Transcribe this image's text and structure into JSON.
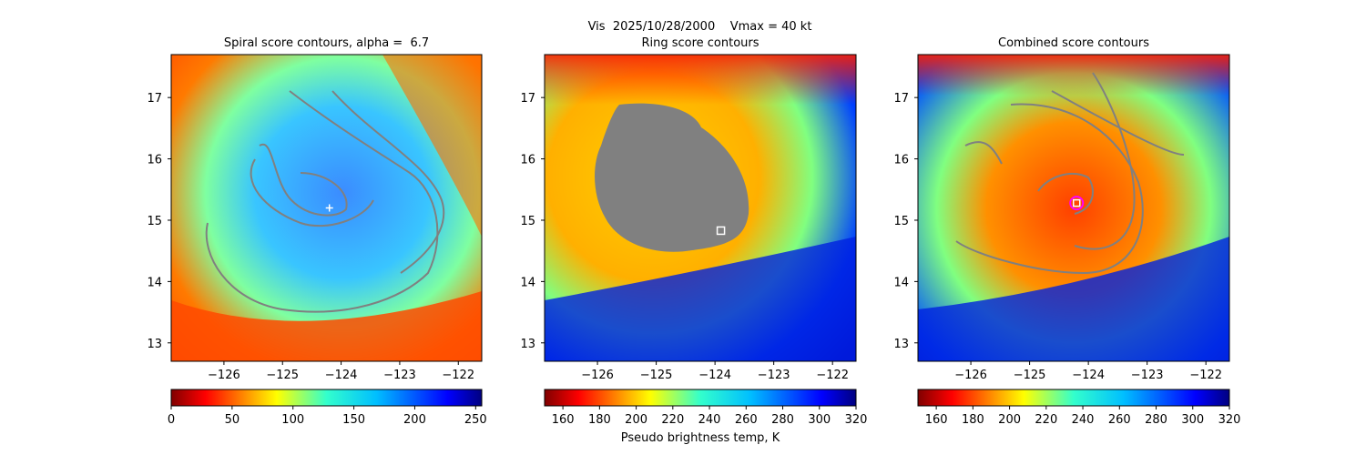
{
  "suptitle": "Vis  2025/10/28/2000    Vmax = 40 kt",
  "panels": [
    {
      "title": "Spiral score contours, alpha =  6.7",
      "colormap": "jet_r",
      "colorbar": {
        "ticks": [
          "0",
          "50",
          "100",
          "150",
          "200",
          "250"
        ],
        "range": [
          0,
          255
        ],
        "label": ""
      },
      "marker": {
        "type": "cross",
        "lon": -124.2,
        "lat": 15.2,
        "color": "#ffffff"
      }
    },
    {
      "title": "Ring score contours",
      "colormap": "jet_r",
      "colorbar": {
        "ticks": [
          "160",
          "180",
          "200",
          "220",
          "240",
          "260",
          "280",
          "300",
          "320"
        ],
        "range": [
          150,
          320
        ],
        "label": "Pseudo brightness temp, K"
      },
      "marker": {
        "type": "square",
        "lon": -123.9,
        "lat": 14.83,
        "color": "#ffffff"
      }
    },
    {
      "title": "Combined score contours",
      "colormap": "jet_r",
      "colorbar": {
        "ticks": [
          "160",
          "180",
          "200",
          "220",
          "240",
          "260",
          "280",
          "300",
          "320"
        ],
        "range": [
          150,
          320
        ],
        "label": ""
      },
      "marker": {
        "type": "circle-square",
        "lon": -124.2,
        "lat": 15.28,
        "color": "#ff00ff"
      }
    }
  ],
  "chart_data": {
    "type": "heatmap",
    "description": "Three satellite image panels of a tropical cyclone with score contours",
    "xlim": [
      -126.9,
      -121.6
    ],
    "ylim": [
      12.7,
      17.7
    ],
    "xticks": [
      "-126",
      "-125",
      "-124",
      "-123",
      "-122"
    ],
    "yticks": [
      "13",
      "14",
      "15",
      "16",
      "17"
    ],
    "xtick_values": [
      -126,
      -125,
      -124,
      -123,
      -122
    ],
    "ytick_values": [
      13,
      14,
      15,
      16,
      17
    ],
    "contour_color": "#808080",
    "colors": {
      "ring_mask": "#808080",
      "colorbar_cmap": "jet_r"
    }
  }
}
